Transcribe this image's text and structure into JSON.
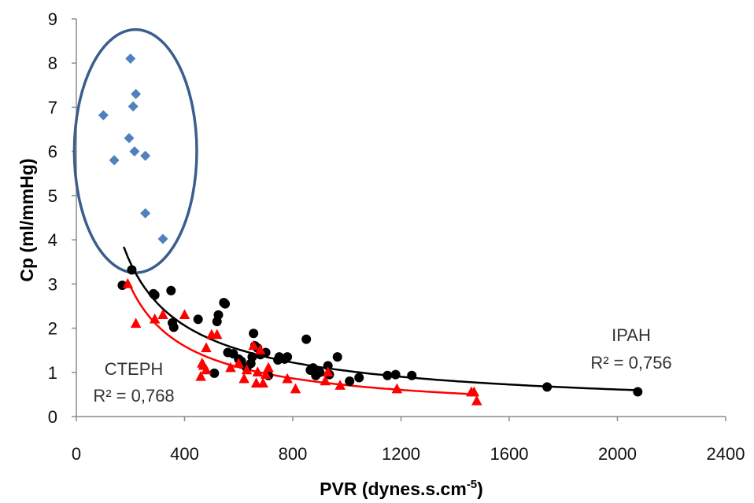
{
  "chart_data": {
    "type": "scatter",
    "title": "",
    "xlabel": "PVR (dynes.s.cm",
    "xlabel_sup": "-5",
    "xlabel_end": ")",
    "ylabel": "Cp (ml/mmHg)",
    "xlim": [
      0,
      2400
    ],
    "ylim": [
      0,
      9
    ],
    "xticks": [
      0,
      400,
      800,
      1200,
      1600,
      2000,
      2400
    ],
    "yticks": [
      0,
      1,
      2,
      3,
      4,
      5,
      6,
      7,
      8,
      9
    ],
    "grid": false,
    "colors": {
      "diamond": "#4F81BD",
      "circle": "#000000",
      "triangle": "#FF0000",
      "ellipse": "#3B5E8C",
      "ipah_curve": "#000000",
      "cteph_curve": "#FF0000"
    },
    "series": [
      {
        "marker": "diamond",
        "points": [
          [
            100,
            6.82
          ],
          [
            200,
            8.1
          ],
          [
            220,
            7.3
          ],
          [
            210,
            7.02
          ],
          [
            195,
            6.3
          ],
          [
            215,
            6.0
          ],
          [
            140,
            5.8
          ],
          [
            255,
            5.9
          ],
          [
            255,
            4.6
          ],
          [
            320,
            4.02
          ]
        ]
      },
      {
        "name": "IPAH",
        "marker": "circle",
        "points": [
          [
            170,
            2.97
          ],
          [
            205,
            3.32
          ],
          [
            285,
            2.78
          ],
          [
            290,
            2.75
          ],
          [
            350,
            2.85
          ],
          [
            355,
            2.12
          ],
          [
            360,
            2.02
          ],
          [
            450,
            2.2
          ],
          [
            510,
            0.98
          ],
          [
            520,
            2.15
          ],
          [
            525,
            2.3
          ],
          [
            545,
            2.58
          ],
          [
            550,
            2.55
          ],
          [
            560,
            1.45
          ],
          [
            580,
            1.42
          ],
          [
            600,
            1.3
          ],
          [
            610,
            1.25
          ],
          [
            630,
            1.1
          ],
          [
            645,
            1.2
          ],
          [
            650,
            1.35
          ],
          [
            655,
            1.88
          ],
          [
            660,
            1.6
          ],
          [
            670,
            1.55
          ],
          [
            680,
            1.4
          ],
          [
            700,
            1.45
          ],
          [
            710,
            0.93
          ],
          [
            745,
            1.28
          ],
          [
            750,
            1.35
          ],
          [
            770,
            1.3
          ],
          [
            780,
            1.35
          ],
          [
            850,
            1.75
          ],
          [
            865,
            1.05
          ],
          [
            875,
            1.1
          ],
          [
            885,
            0.93
          ],
          [
            900,
            1.0
          ],
          [
            930,
            1.15
          ],
          [
            935,
            0.95
          ],
          [
            965,
            1.35
          ],
          [
            1010,
            0.8
          ],
          [
            1045,
            0.88
          ],
          [
            1150,
            0.93
          ],
          [
            1180,
            0.95
          ],
          [
            1240,
            0.93
          ],
          [
            1740,
            0.67
          ],
          [
            2075,
            0.56
          ]
        ],
        "fit": {
          "r2_label": "R² = 0,756",
          "r2_value": 0.756,
          "x_range": [
            175,
            2075
          ]
        }
      },
      {
        "name": "CTEPH",
        "marker": "triangle",
        "points": [
          [
            190,
            3.0
          ],
          [
            220,
            2.1
          ],
          [
            290,
            2.2
          ],
          [
            320,
            2.3
          ],
          [
            400,
            2.3
          ],
          [
            460,
            0.9
          ],
          [
            465,
            1.2
          ],
          [
            470,
            1.15
          ],
          [
            480,
            1.05
          ],
          [
            480,
            1.55
          ],
          [
            500,
            1.85
          ],
          [
            520,
            1.85
          ],
          [
            570,
            1.1
          ],
          [
            600,
            1.2
          ],
          [
            620,
            0.85
          ],
          [
            630,
            1.05
          ],
          [
            655,
            1.6
          ],
          [
            665,
            0.75
          ],
          [
            670,
            1.0
          ],
          [
            680,
            1.5
          ],
          [
            690,
            0.75
          ],
          [
            700,
            0.95
          ],
          [
            710,
            1.1
          ],
          [
            780,
            0.85
          ],
          [
            810,
            0.62
          ],
          [
            920,
            0.8
          ],
          [
            930,
            1.0
          ],
          [
            975,
            0.7
          ],
          [
            1185,
            0.62
          ],
          [
            1460,
            0.55
          ],
          [
            1470,
            0.55
          ],
          [
            1480,
            0.35
          ]
        ],
        "fit": {
          "r2_label": "R² = 0,768",
          "r2_value": 0.768,
          "x_range": [
            190,
            1460
          ]
        }
      }
    ],
    "annotations": [
      {
        "text": "IPAH",
        "near_series": "IPAH"
      },
      {
        "text": "CTEPH",
        "near_series": "CTEPH"
      }
    ]
  }
}
